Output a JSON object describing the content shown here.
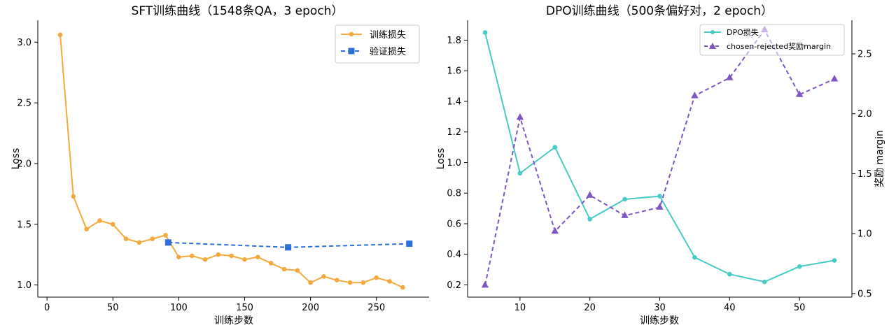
{
  "chart_data": [
    {
      "type": "line",
      "title": "SFT训练曲线（1548条QA，3 epoch）",
      "xlabel": "训练步数",
      "ylabel": "Loss",
      "xlim": [
        -7,
        290
      ],
      "ylim": [
        0.9,
        3.18
      ],
      "xticks": [
        0,
        50,
        100,
        150,
        200,
        250
      ],
      "yticks": [
        1.0,
        1.5,
        2.0,
        2.5,
        3.0
      ],
      "ytick_labels": [
        "1.0",
        "1.5",
        "2.0",
        "2.5",
        "3.0"
      ],
      "legend_position": "top-right",
      "series": [
        {
          "name": "训练损失",
          "color": "#F5A93B",
          "marker": "circle",
          "dash": "solid",
          "x": [
            10,
            20,
            30,
            40,
            50,
            60,
            70,
            80,
            90,
            100,
            110,
            120,
            130,
            140,
            150,
            160,
            170,
            180,
            190,
            200,
            210,
            220,
            230,
            240,
            250,
            260,
            270
          ],
          "y": [
            3.06,
            1.73,
            1.46,
            1.53,
            1.5,
            1.38,
            1.35,
            1.38,
            1.41,
            1.23,
            1.24,
            1.21,
            1.25,
            1.24,
            1.21,
            1.23,
            1.18,
            1.13,
            1.12,
            1.02,
            1.07,
            1.04,
            1.02,
            1.02,
            1.06,
            1.03,
            0.98
          ]
        },
        {
          "name": "验证损失",
          "color": "#2E6FD8",
          "marker": "square",
          "dash": "dashed",
          "x": [
            92,
            183,
            275
          ],
          "y": [
            1.35,
            1.31,
            1.34
          ]
        }
      ]
    },
    {
      "type": "line",
      "title": "DPO训练曲线（500条偏好对，2 epoch）",
      "xlabel": "训练步数",
      "ylabel": "Loss",
      "y2label": "奖励 margin",
      "xlim": [
        2.5,
        57.5
      ],
      "ylim": [
        0.12,
        1.93
      ],
      "y2lim": [
        0.47,
        2.78
      ],
      "xticks": [
        10,
        20,
        30,
        40,
        50
      ],
      "yticks": [
        0.2,
        0.4,
        0.6,
        0.8,
        1.0,
        1.2,
        1.4,
        1.6,
        1.8
      ],
      "ytick_labels": [
        "0.2",
        "0.4",
        "0.6",
        "0.8",
        "1.0",
        "1.2",
        "1.4",
        "1.6",
        "1.8"
      ],
      "y2ticks": [
        0.5,
        1.0,
        1.5,
        2.0,
        2.5
      ],
      "y2tick_labels": [
        "0.5",
        "1.0",
        "1.5",
        "2.0",
        "2.5"
      ],
      "legend_position": "top-right",
      "series": [
        {
          "name": "DPO损失",
          "color": "#48CBC4",
          "marker": "circle",
          "dash": "solid",
          "axis": "left",
          "x": [
            5,
            10,
            15,
            20,
            25,
            30,
            35,
            40,
            45,
            50,
            55
          ],
          "y": [
            1.85,
            0.93,
            1.1,
            0.63,
            0.76,
            0.78,
            0.38,
            0.27,
            0.22,
            0.32,
            0.36
          ]
        },
        {
          "name": "chosen-rejected奖励margin",
          "color": "#7E57C2",
          "marker": "triangle",
          "dash": "dashed",
          "axis": "right",
          "x": [
            5,
            10,
            15,
            20,
            25,
            30,
            35,
            40,
            45,
            50,
            55
          ],
          "y": [
            0.57,
            1.97,
            1.02,
            1.32,
            1.15,
            1.22,
            2.15,
            2.3,
            2.7,
            2.16,
            2.29
          ]
        }
      ]
    }
  ]
}
